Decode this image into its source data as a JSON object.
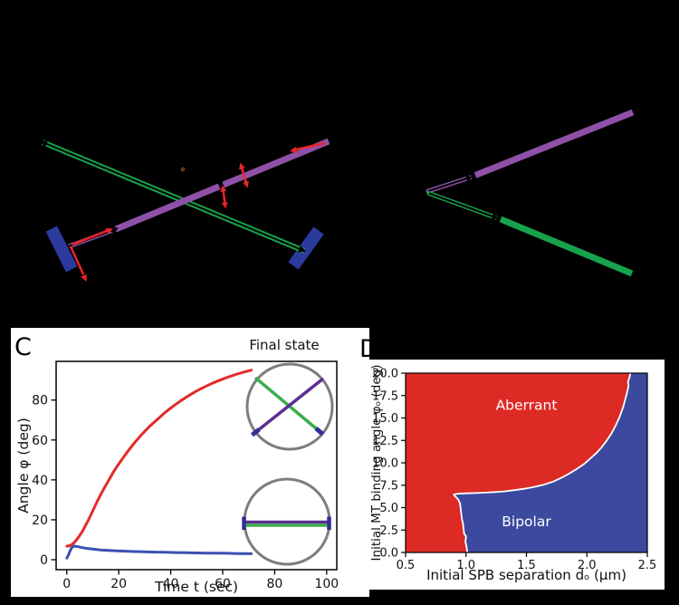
{
  "colors": {
    "background": "#000000",
    "panel_bg": "#ffffff",
    "mt_green": "#17a24b",
    "mt_purple": "#8f51a8",
    "spb_blue": "#2b3a9c",
    "arrow_red": "#e92528",
    "dot_brown": "#5a3a22",
    "curve_red": "#e22a28",
    "curve_blue": "#3a50b2",
    "inset_green": "#3cae4c",
    "inset_purple": "#5c2e91",
    "inset_blue": "#2e3096",
    "circle_gray": "#7d7d7d",
    "region_red": "#dd2a25",
    "region_blue": "#3b4a9e",
    "boundary_white": "#ffffff",
    "axis_black": "#000000"
  },
  "panels": {
    "c": {
      "label": "C"
    },
    "d": {
      "label": "D"
    }
  },
  "chart_data": [
    {
      "panel": "C",
      "type": "line",
      "title": "Final state",
      "xlabel": "Time t (sec)",
      "ylabel": "Angle φ (deg)",
      "xlim": [
        -4.1,
        103.9
      ],
      "ylim": [
        -5.0,
        99.4
      ],
      "xticks": [
        0,
        20,
        40,
        60,
        80,
        100
      ],
      "yticks": [
        0,
        20,
        40,
        60,
        80
      ],
      "grid": false,
      "series": [
        {
          "name": "aberrant-trajectory",
          "color": "#e22a28",
          "points": [
            [
              0,
              6.8
            ],
            [
              1,
              7.0
            ],
            [
              2,
              7.6
            ],
            [
              3,
              8.8
            ],
            [
              4,
              10.4
            ],
            [
              5,
              12.2
            ],
            [
              6,
              14.2
            ],
            [
              8,
              19
            ],
            [
              10,
              24.5
            ],
            [
              12,
              30
            ],
            [
              14,
              35
            ],
            [
              16,
              39.5
            ],
            [
              18,
              44
            ],
            [
              20,
              48
            ],
            [
              23,
              53.5
            ],
            [
              26,
              58.5
            ],
            [
              29,
              63
            ],
            [
              32,
              67
            ],
            [
              35,
              70.5
            ],
            [
              38,
              74
            ],
            [
              41,
              77
            ],
            [
              44,
              79.8
            ],
            [
              47,
              82.3
            ],
            [
              50,
              84.6
            ],
            [
              53,
              86.6
            ],
            [
              56,
              88.4
            ],
            [
              59,
              90
            ],
            [
              62,
              91.5
            ],
            [
              65,
              92.8
            ],
            [
              68,
              94
            ],
            [
              71,
              95
            ]
          ]
        },
        {
          "name": "bipolar-trajectory",
          "color": "#3a50b2",
          "points": [
            [
              0,
              0.8
            ],
            [
              0.6,
              2.2
            ],
            [
              1.2,
              4.2
            ],
            [
              1.8,
              5.8
            ],
            [
              2.4,
              6.6
            ],
            [
              3,
              6.8
            ],
            [
              4,
              6.6
            ],
            [
              5,
              6.3
            ],
            [
              6,
              6.05
            ],
            [
              8,
              5.6
            ],
            [
              10,
              5.3
            ],
            [
              13,
              4.9
            ],
            [
              16,
              4.65
            ],
            [
              19,
              4.45
            ],
            [
              22,
              4.3
            ],
            [
              26,
              4.1
            ],
            [
              30,
              3.95
            ],
            [
              34,
              3.8
            ],
            [
              38,
              3.7
            ],
            [
              42,
              3.6
            ],
            [
              46,
              3.5
            ],
            [
              50,
              3.4
            ],
            [
              54,
              3.3
            ],
            [
              58,
              3.25
            ],
            [
              62,
              3.2
            ],
            [
              66,
              3.1
            ],
            [
              69,
              3.05
            ],
            [
              71,
              3.0
            ]
          ]
        }
      ]
    },
    {
      "panel": "D",
      "type": "heatmap",
      "xlabel": "Initial SPB separation dₒ (μm)",
      "ylabel": "Initial MT binding angle φₒ (deg)",
      "xlim": [
        0.5,
        2.5
      ],
      "ylim": [
        0.0,
        20.0
      ],
      "xtick_labels": [
        "0.5",
        "1.0",
        "1.5",
        "2.0",
        "2.5"
      ],
      "xticks": [
        0.5,
        1.0,
        1.5,
        2.0,
        2.5
      ],
      "ytick_labels": [
        "0.0",
        "2.5",
        "5.0",
        "7.5",
        "10.0",
        "12.5",
        "15.0",
        "17.5",
        "20.0"
      ],
      "yticks": [
        0.0,
        2.5,
        5.0,
        7.5,
        10.0,
        12.5,
        15.0,
        17.5,
        20.0
      ],
      "regions": [
        {
          "name": "Aberrant",
          "color": "#dd2a25",
          "label_pos": [
            1.5,
            16.4
          ]
        },
        {
          "name": "Bipolar",
          "color": "#3b4a9e",
          "label_pos": [
            1.5,
            3.45
          ]
        }
      ],
      "boundary_points": [
        [
          1.01,
          0
        ],
        [
          1.005,
          0.6
        ],
        [
          0.995,
          1.2
        ],
        [
          1.0,
          1.8
        ],
        [
          0.985,
          2.1
        ],
        [
          0.98,
          2.6
        ],
        [
          0.975,
          3.2
        ],
        [
          0.965,
          3.8
        ],
        [
          0.96,
          4.4
        ],
        [
          0.955,
          5.0
        ],
        [
          0.95,
          5.5
        ],
        [
          0.935,
          5.9
        ],
        [
          0.92,
          6.15
        ],
        [
          0.905,
          6.3
        ],
        [
          0.9,
          6.45
        ],
        [
          0.93,
          6.55
        ],
        [
          1.0,
          6.6
        ],
        [
          1.08,
          6.63
        ],
        [
          1.16,
          6.68
        ],
        [
          1.24,
          6.74
        ],
        [
          1.32,
          6.82
        ],
        [
          1.4,
          6.95
        ],
        [
          1.48,
          7.1
        ],
        [
          1.56,
          7.3
        ],
        [
          1.64,
          7.55
        ],
        [
          1.72,
          7.9
        ],
        [
          1.8,
          8.4
        ],
        [
          1.86,
          8.85
        ],
        [
          1.92,
          9.35
        ],
        [
          1.98,
          9.9
        ],
        [
          2.03,
          10.5
        ],
        [
          2.08,
          11.1
        ],
        [
          2.12,
          11.7
        ],
        [
          2.16,
          12.4
        ],
        [
          2.2,
          13.2
        ],
        [
          2.24,
          14.2
        ],
        [
          2.27,
          15.1
        ],
        [
          2.3,
          16.2
        ],
        [
          2.32,
          17.2
        ],
        [
          2.335,
          18.0
        ],
        [
          2.345,
          18.6
        ],
        [
          2.34,
          19.0
        ],
        [
          2.35,
          19.4
        ],
        [
          2.36,
          20.0
        ]
      ]
    }
  ]
}
